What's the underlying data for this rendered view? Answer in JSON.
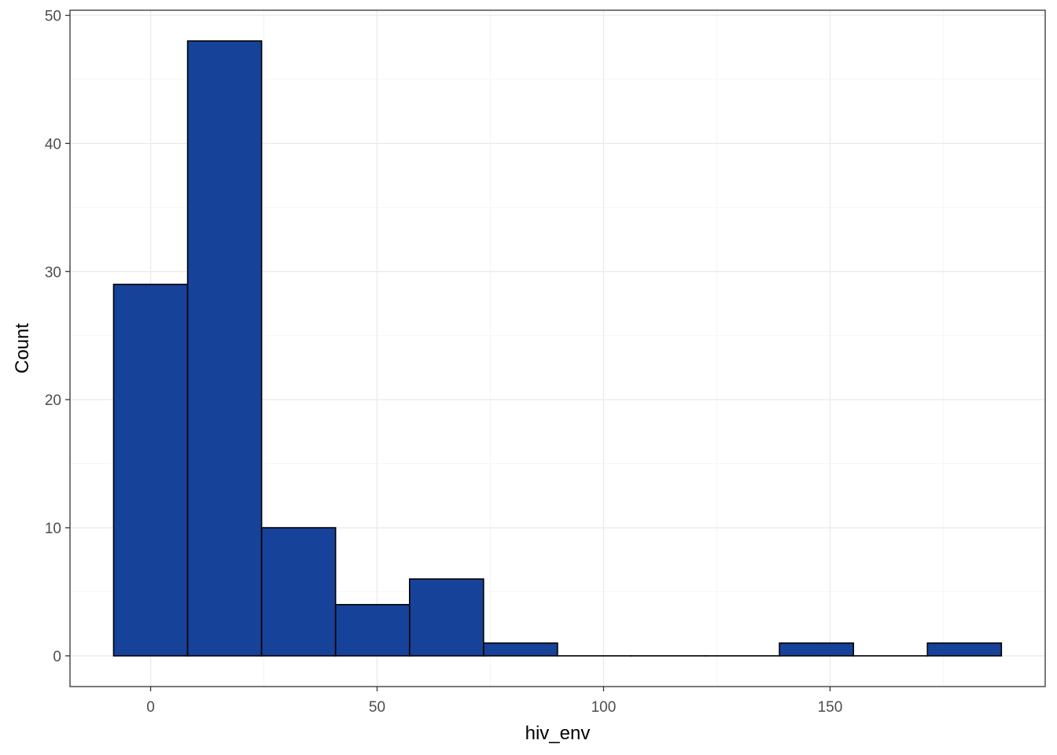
{
  "chart_data": {
    "type": "bar",
    "title": "",
    "xlabel": "hiv_env",
    "ylabel": "Count",
    "bin_width": 16.33,
    "bins": [
      {
        "x_start": -8.17,
        "x_end": 8.17,
        "count": 29
      },
      {
        "x_start": 8.17,
        "x_end": 24.5,
        "count": 48
      },
      {
        "x_start": 24.5,
        "x_end": 40.83,
        "count": 10
      },
      {
        "x_start": 40.83,
        "x_end": 57.17,
        "count": 4
      },
      {
        "x_start": 57.17,
        "x_end": 73.5,
        "count": 6
      },
      {
        "x_start": 73.5,
        "x_end": 89.83,
        "count": 1
      },
      {
        "x_start": 89.83,
        "x_end": 106.17,
        "count": 0
      },
      {
        "x_start": 106.17,
        "x_end": 122.5,
        "count": 0
      },
      {
        "x_start": 122.5,
        "x_end": 138.83,
        "count": 0
      },
      {
        "x_start": 138.83,
        "x_end": 155.17,
        "count": 1
      },
      {
        "x_start": 155.17,
        "x_end": 171.5,
        "count": 0
      },
      {
        "x_start": 171.5,
        "x_end": 187.83,
        "count": 1
      }
    ],
    "xlim": [
      -17.8,
      197.5
    ],
    "ylim": [
      -2.4,
      50.4
    ],
    "x_ticks": [
      0,
      50,
      100,
      150
    ],
    "x_tick_labels": [
      "0",
      "50",
      "100",
      "150"
    ],
    "y_ticks": [
      0,
      10,
      20,
      30,
      40,
      50
    ],
    "y_tick_labels": [
      "0",
      "10",
      "20",
      "30",
      "40",
      "50"
    ],
    "x_minor": [
      -25,
      25,
      75,
      125,
      175
    ],
    "y_minor": [
      5,
      15,
      25,
      35,
      45
    ],
    "grid": true,
    "legend": "none",
    "colors": {
      "bar_fill": "#174299",
      "bar_outline": "#000000",
      "grid_major": "#ebebeb",
      "grid_minor": "#f5f5f5",
      "panel_border": "#333333",
      "tick_text": "#4d4d4d"
    }
  }
}
